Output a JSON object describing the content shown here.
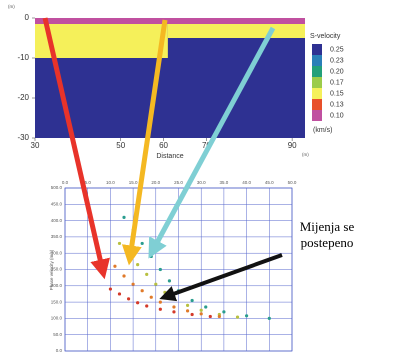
{
  "chart_data": [
    {
      "type": "section",
      "y_unit": "(m)",
      "x_label": "Distance",
      "x_unit": "(m)",
      "xlim": [
        30,
        93
      ],
      "ylim": [
        0,
        -30
      ],
      "xticks": [
        30,
        50,
        60,
        70,
        90
      ],
      "yticks": [
        0,
        -10,
        -20,
        -30
      ],
      "layers": [
        {
          "x": [
            30,
            93
          ],
          "depth": [
            0,
            -30
          ],
          "color": "#2e3192"
        },
        {
          "x": [
            30,
            93
          ],
          "depth": [
            0,
            -1.5
          ],
          "color": "#c050a0"
        },
        {
          "x": [
            30,
            61
          ],
          "depth": [
            -1.5,
            -10
          ],
          "color": "#f5f05a"
        },
        {
          "x": [
            61,
            93
          ],
          "depth": [
            -1.5,
            -5
          ],
          "color": "#f5f05a"
        }
      ],
      "colorbar": {
        "title": "S-velocity",
        "unit": "(km/s)",
        "levels": [
          {
            "value": 0.25,
            "label": "0.25",
            "color": "#2e3192"
          },
          {
            "value": 0.23,
            "label": "0.23",
            "color": "#2a7fb8"
          },
          {
            "value": 0.2,
            "label": "0.20",
            "color": "#22a07a"
          },
          {
            "value": 0.17,
            "label": "0.17",
            "color": "#9ccc4a"
          },
          {
            "value": 0.15,
            "label": "0.15",
            "color": "#f5f05a"
          },
          {
            "value": 0.13,
            "label": "0.13",
            "color": "#e8502a"
          },
          {
            "value": 0.1,
            "label": "0.10",
            "color": "#c050a0"
          }
        ]
      }
    },
    {
      "type": "scatter",
      "y_label": "Phase velocity (m/s)",
      "xlim": [
        0,
        50
      ],
      "ylim": [
        0,
        500
      ],
      "xticks": [
        {
          "value": 0,
          "label": "0.0"
        },
        {
          "value": 5,
          "label": "5.0"
        },
        {
          "value": 10,
          "label": "10.0"
        },
        {
          "value": 15,
          "label": "15.0"
        },
        {
          "value": 20,
          "label": "20.0"
        },
        {
          "value": 25,
          "label": "25.0"
        },
        {
          "value": 30,
          "label": "30.0"
        },
        {
          "value": 35,
          "label": "35.0"
        },
        {
          "value": 40,
          "label": "40.0"
        },
        {
          "value": 45,
          "label": "45.0"
        },
        {
          "value": 50,
          "label": "50.0"
        }
      ],
      "yticks": [
        {
          "value": 0,
          "label": "0.0"
        },
        {
          "value": 50,
          "label": "50.0"
        },
        {
          "value": 100,
          "label": "100.0"
        },
        {
          "value": 150,
          "label": "150.0"
        },
        {
          "value": 200,
          "label": "200.0"
        },
        {
          "value": 250,
          "label": "250.0"
        },
        {
          "value": 300,
          "label": "300.0"
        },
        {
          "value": 350,
          "label": "350.0"
        },
        {
          "value": 400,
          "label": "400.0"
        },
        {
          "value": 450,
          "label": "450.0"
        },
        {
          "value": 500,
          "label": "500.0"
        }
      ],
      "grid": true,
      "series": [
        {
          "color": "#2a9d8f",
          "x": [
            13,
            15,
            17,
            19,
            21,
            23,
            25,
            28,
            31,
            35,
            40,
            45
          ],
          "values": [
            410,
            370,
            330,
            290,
            250,
            215,
            185,
            155,
            135,
            120,
            108,
            100
          ]
        },
        {
          "color": "#b8c040",
          "x": [
            12,
            14,
            16,
            18,
            20,
            22,
            24,
            27,
            30,
            34,
            38
          ],
          "values": [
            330,
            300,
            265,
            235,
            205,
            180,
            160,
            140,
            125,
            112,
            104
          ]
        },
        {
          "color": "#e07a2a",
          "x": [
            11,
            13,
            15,
            17,
            19,
            21,
            24,
            27,
            30,
            34
          ],
          "values": [
            260,
            230,
            205,
            185,
            165,
            150,
            135,
            123,
            114,
            106
          ]
        },
        {
          "color": "#d43a2a",
          "x": [
            10,
            12,
            14,
            16,
            18,
            21,
            24,
            28,
            32
          ],
          "values": [
            190,
            175,
            160,
            148,
            138,
            128,
            120,
            112,
            106
          ]
        }
      ],
      "annotation": [
        "Mijenja se",
        "postepeno"
      ]
    }
  ]
}
